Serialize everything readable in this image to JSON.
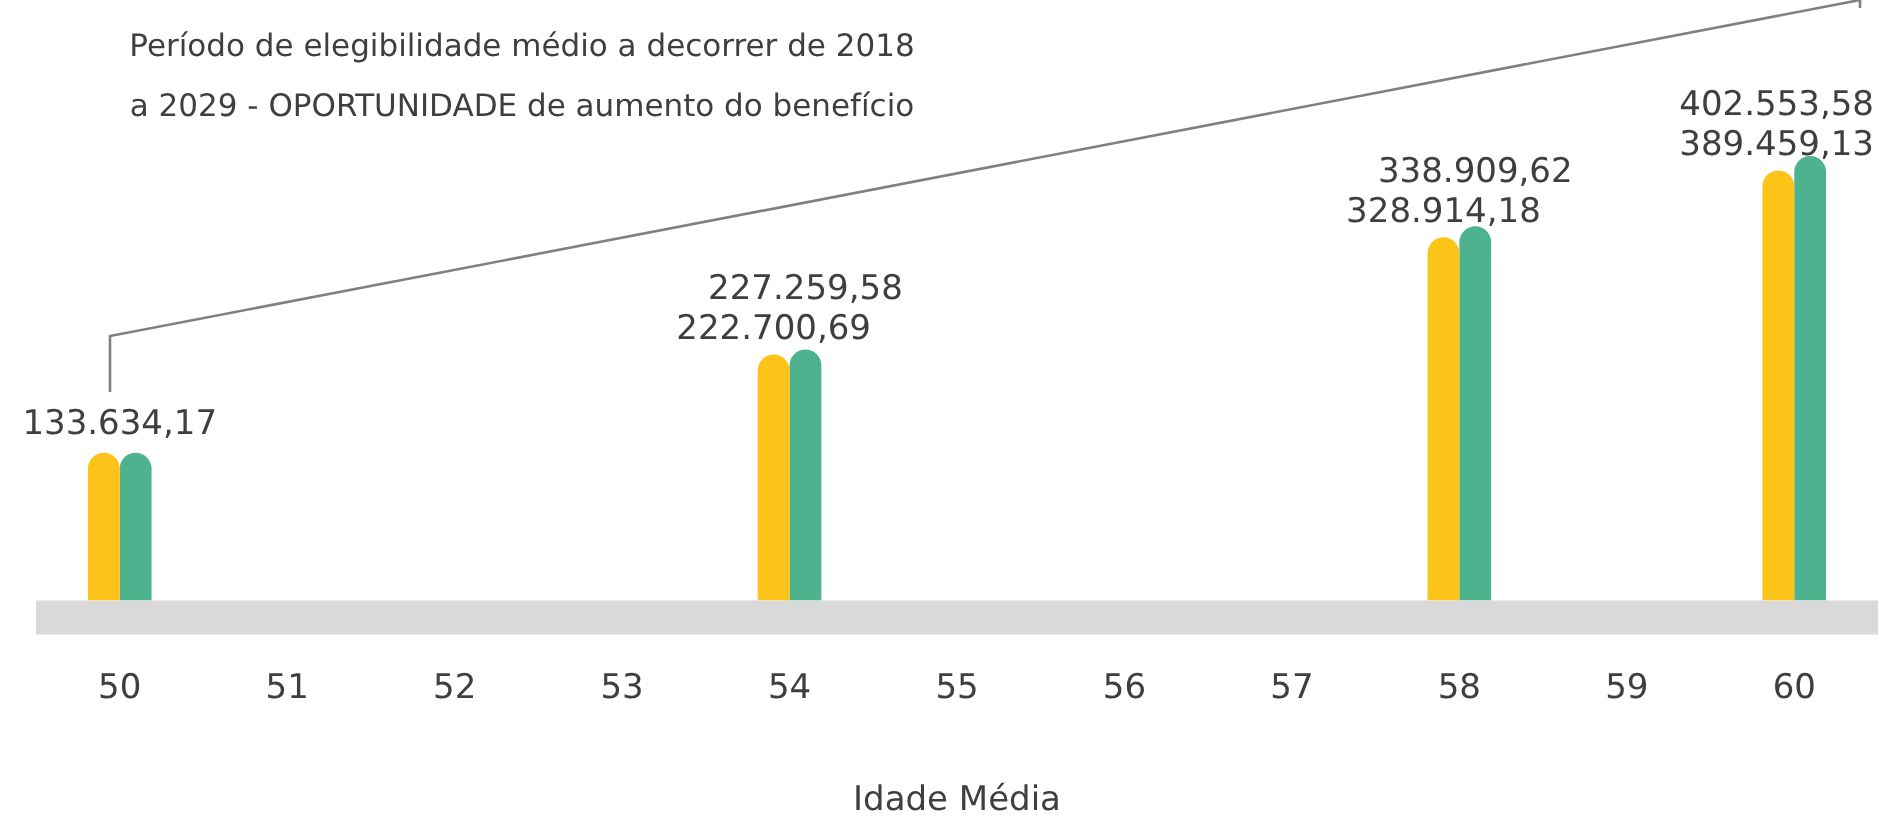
{
  "chart_data": {
    "type": "bar",
    "title": "Período de elegibilidade médio a decorrer de 2018 a 2029 - OPORTUNIDADE de aumento do benefício",
    "xlabel": "Idade Média",
    "categories": [
      "50",
      "51",
      "52",
      "53",
      "54",
      "55",
      "56",
      "57",
      "58",
      "59",
      "60"
    ],
    "series": [
      {
        "color": "#fcc419",
        "values": [
          133634.17,
          null,
          null,
          null,
          222700.69,
          null,
          null,
          null,
          328914.18,
          null,
          389459.13
        ],
        "value_labels": [
          "133.634,17",
          null,
          null,
          null,
          "222.700,69",
          null,
          null,
          null,
          "328.914,18",
          null,
          "389.459,13"
        ]
      },
      {
        "color": "#4db38e",
        "values": [
          133634.17,
          null,
          null,
          null,
          227259.58,
          null,
          null,
          null,
          338909.62,
          null,
          402553.58
        ],
        "value_labels": [
          null,
          null,
          null,
          null,
          "227.259,58",
          null,
          null,
          null,
          "338.909,62",
          null,
          "402.553,58"
        ]
      }
    ],
    "tick_labels": "x"
  }
}
